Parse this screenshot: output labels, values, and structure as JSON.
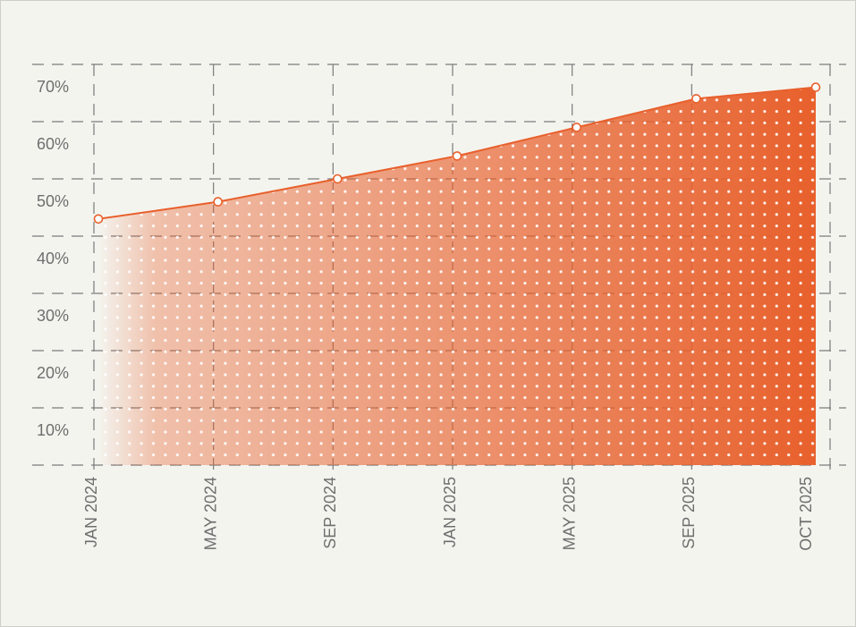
{
  "chart_data": {
    "type": "area",
    "categories": [
      "JAN 2024",
      "MAY 2024",
      "SEP 2024",
      "JAN 2025",
      "MAY 2025",
      "SEP 2025",
      "OCT 2025"
    ],
    "values": [
      43,
      46,
      50,
      54,
      59,
      64,
      66
    ],
    "color": "#e8602c",
    "ylim": [
      0,
      70
    ],
    "yticks": [
      {
        "value": 10,
        "label": "10%"
      },
      {
        "value": 20,
        "label": "20%"
      },
      {
        "value": 30,
        "label": "30%"
      },
      {
        "value": 40,
        "label": "40%"
      },
      {
        "value": 50,
        "label": "50%"
      },
      {
        "value": 60,
        "label": "60%"
      },
      {
        "value": 70,
        "label": "70%"
      }
    ],
    "grid": true
  }
}
